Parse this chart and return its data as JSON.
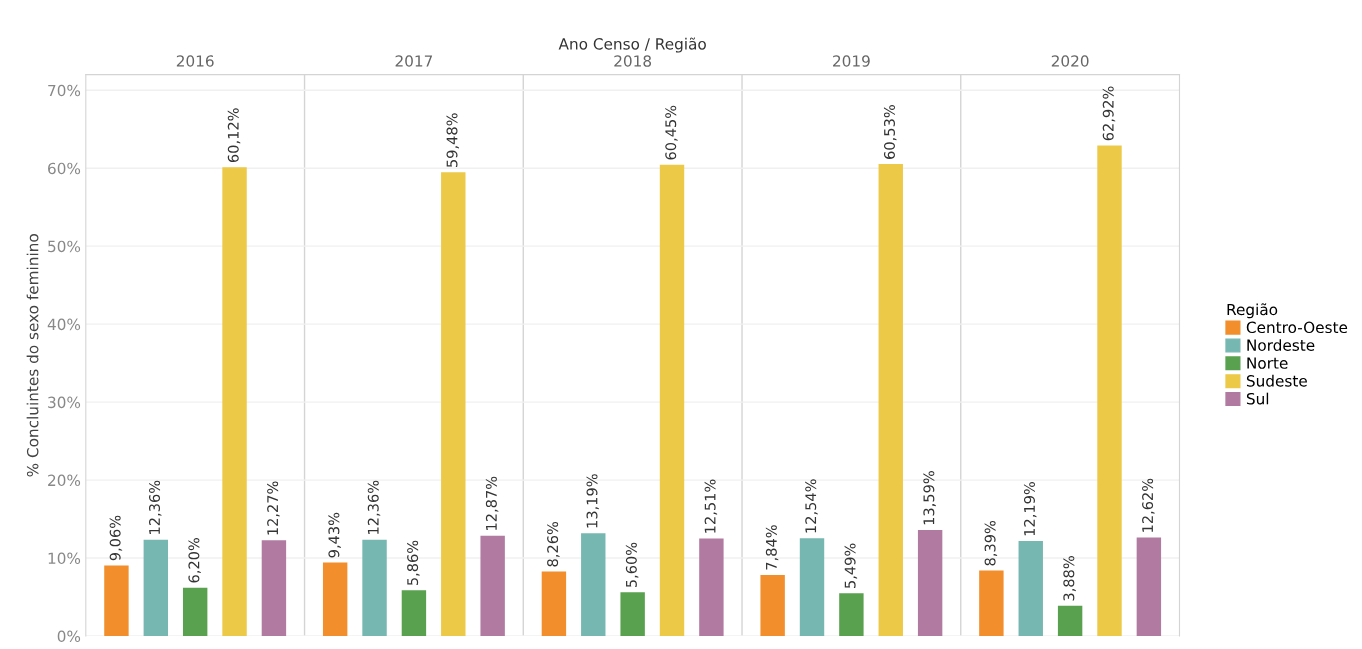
{
  "chart_data": {
    "type": "bar",
    "xlabel": "Ano Censo / Região",
    "ylabel": "% Concluintes do sexo feminino",
    "categories": [
      "2016",
      "2017",
      "2018",
      "2019",
      "2020"
    ],
    "ylim": [
      0,
      72
    ],
    "yticks": [
      {
        "value": 0,
        "label": "0%"
      },
      {
        "value": 10,
        "label": "10%"
      },
      {
        "value": 20,
        "label": "20%"
      },
      {
        "value": 30,
        "label": "30%"
      },
      {
        "value": 40,
        "label": "40%"
      },
      {
        "value": 50,
        "label": "50%"
      },
      {
        "value": 60,
        "label": "60%"
      },
      {
        "value": 70,
        "label": "70%"
      }
    ],
    "grid": "y",
    "legend": "right",
    "legend_title": "Região",
    "series": [
      {
        "name": "Centro-Oeste",
        "color": "#f28e2b",
        "values": [
          9.06,
          9.43,
          8.26,
          7.84,
          8.39
        ],
        "value_labels": [
          "9,06%",
          "9,43%",
          "8,26%",
          "7,84%",
          "8,39%"
        ]
      },
      {
        "name": "Nordeste",
        "color": "#76b7b2",
        "values": [
          12.36,
          12.36,
          13.19,
          12.54,
          12.19
        ],
        "value_labels": [
          "12,36%",
          "12,36%",
          "13,19%",
          "12,54%",
          "12,19%"
        ]
      },
      {
        "name": "Norte",
        "color": "#59a14f",
        "values": [
          6.2,
          5.86,
          5.6,
          5.49,
          3.88
        ],
        "value_labels": [
          "6,20%",
          "5,86%",
          "5,60%",
          "5,49%",
          "3,88%"
        ]
      },
      {
        "name": "Sudeste",
        "color": "#edc948",
        "values": [
          60.12,
          59.48,
          60.45,
          60.53,
          62.92
        ],
        "value_labels": [
          "60,12%",
          "59,48%",
          "60,45%",
          "60,53%",
          "62,92%"
        ]
      },
      {
        "name": "Sul",
        "color": "#b07aa1",
        "values": [
          12.27,
          12.87,
          12.51,
          13.59,
          12.62
        ],
        "value_labels": [
          "12,27%",
          "12,87%",
          "12,51%",
          "13,59%",
          "12,62%"
        ]
      }
    ]
  }
}
